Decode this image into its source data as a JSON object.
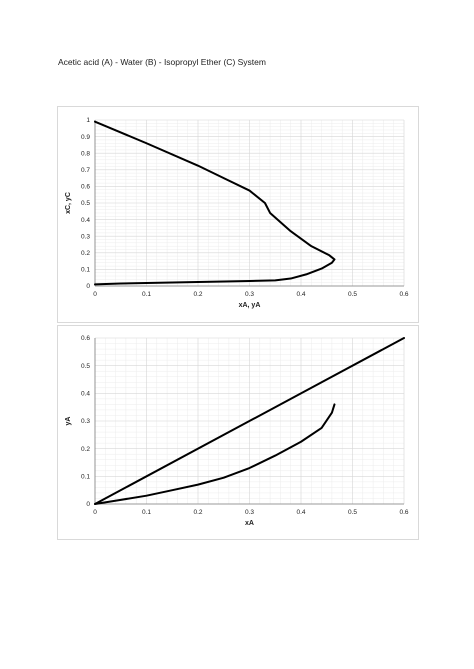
{
  "page": {
    "title": "Acetic acid (A) - Water (B) - Isopropyl Ether (C) System"
  },
  "style": {
    "line_color": "#000000",
    "major_grid_color": "#d6d6d6",
    "minor_grid_color": "#ececec",
    "border_color": "#d9d9d9"
  },
  "chart_data": [
    {
      "type": "line",
      "title": "",
      "xlabel": "xA, yA",
      "ylabel": "xC, yC",
      "xlim": [
        0,
        0.6
      ],
      "ylim": [
        0,
        1
      ],
      "xticks": [
        "0",
        "0.1",
        "0.2",
        "0.3",
        "0.4",
        "0.5",
        "0.6"
      ],
      "yticks": [
        "0",
        "0.1",
        "0.2",
        "0.3",
        "0.4",
        "0.5",
        "0.6",
        "0.7",
        "0.8",
        "0.9",
        "1"
      ],
      "grid": true,
      "legend": "none",
      "series": [
        {
          "points": [
            [
              0,
              0.01
            ],
            [
              0.05,
              0.015
            ],
            [
              0.1,
              0.018
            ],
            [
              0.2,
              0.024
            ],
            [
              0.3,
              0.03
            ],
            [
              0.35,
              0.034
            ],
            [
              0.38,
              0.045
            ],
            [
              0.41,
              0.07
            ],
            [
              0.44,
              0.105
            ],
            [
              0.46,
              0.14
            ],
            [
              0.465,
              0.16
            ],
            [
              0.455,
              0.185
            ],
            [
              0.42,
              0.24
            ],
            [
              0.38,
              0.33
            ],
            [
              0.34,
              0.44
            ],
            [
              0.33,
              0.5
            ],
            [
              0.3,
              0.575
            ],
            [
              0.25,
              0.65
            ],
            [
              0.2,
              0.725
            ],
            [
              0.1,
              0.86
            ],
            [
              0,
              0.99
            ]
          ]
        }
      ]
    },
    {
      "type": "line",
      "title": "",
      "xlabel": "xA",
      "ylabel": "yA",
      "xlim": [
        0,
        0.6
      ],
      "ylim": [
        0,
        0.6
      ],
      "xticks": [
        "0",
        "0.1",
        "0.2",
        "0.3",
        "0.4",
        "0.5",
        "0.6"
      ],
      "yticks": [
        "0",
        "0.1",
        "0.2",
        "0.3",
        "0.4",
        "0.5",
        "0.6"
      ],
      "grid": true,
      "legend": "none",
      "series": [
        {
          "points": [
            [
              0,
              0
            ],
            [
              0.6,
              0.6
            ]
          ]
        },
        {
          "points": [
            [
              0,
              0
            ],
            [
              0.05,
              0.015
            ],
            [
              0.1,
              0.03
            ],
            [
              0.15,
              0.05
            ],
            [
              0.2,
              0.07
            ],
            [
              0.25,
              0.095
            ],
            [
              0.3,
              0.13
            ],
            [
              0.35,
              0.175
            ],
            [
              0.4,
              0.225
            ],
            [
              0.44,
              0.275
            ],
            [
              0.46,
              0.33
            ],
            [
              0.465,
              0.36
            ]
          ]
        }
      ]
    }
  ]
}
